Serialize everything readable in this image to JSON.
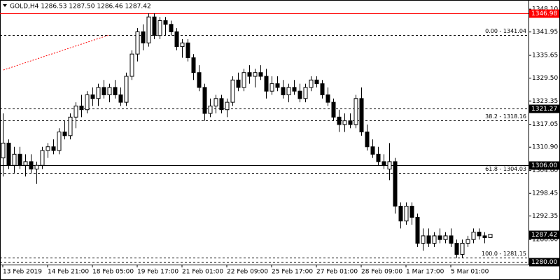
{
  "chart_data": {
    "type": "candlestick",
    "title": "GOLD,H4  1286.53 1287.50 1286.46 1287.42",
    "categories": [
      "13 Feb 2019",
      null,
      null,
      null,
      null,
      null,
      null,
      null,
      "14 Feb 21:00",
      null,
      null,
      null,
      null,
      null,
      null,
      null,
      "18 Feb 05:00",
      null,
      null,
      null,
      null,
      null,
      null,
      null,
      "19 Feb 17:00",
      null,
      null,
      null,
      null,
      null,
      null,
      null,
      "21 Feb 01:00",
      null,
      null,
      null,
      null,
      null,
      null,
      null,
      "22 Feb 09:00",
      null,
      null,
      null,
      null,
      null,
      null,
      null,
      "25 Feb 17:00",
      null,
      null,
      null,
      null,
      null,
      null,
      null,
      "27 Feb 01:00",
      null,
      null,
      null,
      null,
      null,
      null,
      null,
      "28 Feb 09:00",
      null,
      null,
      null,
      null,
      null,
      null,
      null,
      "1 Mar 17:00",
      null,
      null,
      null,
      null,
      null,
      null,
      null,
      "5 Mar 01:00",
      null,
      null,
      null,
      null,
      null,
      null,
      null
    ],
    "open": [
      1308,
      1312,
      1306,
      1309,
      1306,
      1307,
      1305,
      1306,
      1310,
      1311,
      1310,
      1315,
      1314,
      1319,
      1322,
      1321,
      1325,
      1324,
      1327,
      1325,
      1327,
      1325,
      1323,
      1330,
      1336,
      1342,
      1339,
      1346,
      1341,
      1345,
      1344,
      1342,
      1338,
      1339,
      1335,
      1331,
      1327,
      1320,
      1322,
      1324,
      1321,
      1323,
      1329,
      1327,
      1331,
      1330,
      1331,
      1330,
      1326,
      1328,
      1327,
      1325,
      1327,
      1326,
      1324,
      1327,
      1329,
      1328,
      1325,
      1323,
      1319,
      1317,
      1318,
      1317,
      1324,
      1315,
      1311,
      1309,
      1307,
      1305,
      1307,
      1295,
      1291,
      1295,
      1292,
      1285,
      1287,
      1285,
      1287,
      1286,
      1287,
      1285,
      1282,
      1285,
      1286,
      1288,
      1287,
      1286.53
    ],
    "high": [
      1320,
      1313,
      1311,
      1311,
      1309,
      1309,
      1307,
      1311,
      1312,
      1313,
      1316,
      1318,
      1320,
      1323,
      1325,
      1326,
      1327,
      1328,
      1329,
      1328,
      1329,
      1327,
      1331,
      1337,
      1343,
      1344,
      1347,
      1347,
      1346,
      1346,
      1345,
      1343,
      1340,
      1340,
      1336,
      1333,
      1328,
      1324,
      1325,
      1325,
      1324,
      1330,
      1331,
      1332,
      1333,
      1332,
      1333,
      1332,
      1330,
      1330,
      1329,
      1328,
      1329,
      1328,
      1328,
      1330,
      1330,
      1329,
      1327,
      1324,
      1321,
      1320,
      1320,
      1325,
      1327,
      1317,
      1313,
      1311,
      1309,
      1312,
      1308,
      1296,
      1296,
      1296,
      1293,
      1289,
      1289,
      1288,
      1289,
      1288,
      1289,
      1286,
      1286,
      1287,
      1289,
      1289,
      1288,
      1287.5
    ],
    "low": [
      1303,
      1305,
      1304,
      1305,
      1303,
      1304,
      1301,
      1305,
      1308,
      1309,
      1309,
      1313,
      1313,
      1316,
      1319,
      1320,
      1322,
      1322,
      1324,
      1323,
      1324,
      1322,
      1322,
      1329,
      1334,
      1337,
      1338,
      1340,
      1340,
      1341,
      1341,
      1337,
      1335,
      1334,
      1329,
      1326,
      1318,
      1319,
      1320,
      1320,
      1319,
      1322,
      1326,
      1326,
      1328,
      1327,
      1329,
      1324,
      1325,
      1326,
      1324,
      1323,
      1325,
      1323,
      1323,
      1326,
      1327,
      1324,
      1322,
      1318,
      1315,
      1315,
      1316,
      1316,
      1314,
      1310,
      1308,
      1306,
      1305,
      1302,
      1293,
      1289,
      1290,
      1290,
      1284,
      1283,
      1284,
      1284,
      1285,
      1285,
      1284,
      1281,
      1281,
      1284,
      1285,
      1286,
      1285,
      1286.46
    ],
    "close": [
      1312,
      1306,
      1309,
      1306,
      1307,
      1305,
      1306,
      1310,
      1311,
      1310,
      1315,
      1314,
      1319,
      1322,
      1321,
      1325,
      1324,
      1327,
      1325,
      1327,
      1325,
      1323,
      1330,
      1336,
      1342,
      1339,
      1346,
      1341,
      1345,
      1344,
      1342,
      1338,
      1339,
      1335,
      1331,
      1327,
      1320,
      1322,
      1324,
      1321,
      1323,
      1329,
      1327,
      1331,
      1330,
      1331,
      1330,
      1326,
      1328,
      1327,
      1325,
      1327,
      1326,
      1324,
      1327,
      1329,
      1328,
      1325,
      1323,
      1319,
      1317,
      1318,
      1317,
      1324,
      1315,
      1311,
      1309,
      1307,
      1306,
      1307,
      1295,
      1291,
      1295,
      1292,
      1285,
      1287,
      1285,
      1287,
      1286,
      1287,
      1285,
      1282,
      1285,
      1286,
      1288,
      1287,
      1286.53,
      1287.42
    ],
    "up_color": "#ffffff",
    "down_color": "#000000",
    "ylim": [
      1279.25,
      1348.68
    ],
    "yticks": [
      {
        "value": 1348.1,
        "label": "1348.10"
      },
      1341.95,
      1335.65,
      {
        "value": 1329.5,
        "label": "1329.50"
      },
      1323.35,
      1317.05,
      {
        "value": 1310.9,
        "label": "1310.90"
      },
      {
        "value": 1304.6,
        "label": "1304.60"
      },
      1298.45,
      1292.35,
      {
        "value": 1286.0,
        "label": "1286.00"
      }
    ],
    "levels": [
      {
        "value": 1346.98,
        "color": "#ff0000",
        "style": "solid"
      },
      {
        "value": 1321.27,
        "color": "#000000",
        "style": "dashed"
      },
      {
        "value": 1306,
        "label": "1306.00",
        "color": "#000000",
        "style": "solid"
      },
      {
        "value": 1287.42,
        "color": "#000000",
        "style": "none"
      },
      {
        "value": 1280,
        "label": "1280.00",
        "color": "#000000",
        "style": "dashed"
      }
    ],
    "fibonacci": [
      {
        "value": 1341.04,
        "label": "0.00 - 1341.04"
      },
      {
        "value": 1318.16,
        "label": "38.2 - 1318.16"
      },
      {
        "value": 1304.03,
        "label": "61.8 - 1304.03"
      },
      {
        "value": 1281.15,
        "label": "100.0 - 1281.15"
      }
    ],
    "trendline": {
      "x": [
        0.1,
        18.9
      ],
      "y": [
        1331.7,
        1341.1
      ],
      "color": "#ff0000"
    }
  }
}
